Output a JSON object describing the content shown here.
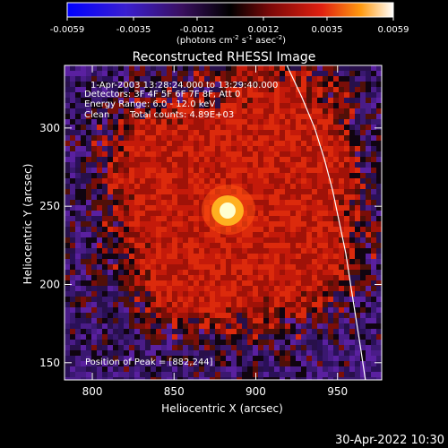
{
  "chart_data": {
    "type": "heatmap",
    "title": "Reconstructed RHESSI Image",
    "xlabel": "Heliocentric X (arcsec)",
    "ylabel": "Heliocentric Y (arcsec)",
    "xlim": [
      783,
      977
    ],
    "ylim": [
      139,
      340
    ],
    "xticks": [
      800,
      850,
      900,
      950
    ],
    "yticks": [
      150,
      200,
      250,
      300
    ],
    "colorbar": {
      "min": -0.0059,
      "max": 0.0059,
      "ticks": [
        "-0.0059",
        "-0.0035",
        "-0.0012",
        "0.0012",
        "0.0035",
        "0.0059"
      ],
      "tick_values": [
        -0.0059,
        -0.0035,
        -0.0012,
        0.0012,
        0.0035,
        0.0059
      ],
      "unit_prefix": "(photons cm",
      "unit_exp1": "-2",
      "unit_mid1": " s",
      "unit_exp2": "-1",
      "unit_mid2": " asec",
      "unit_exp3": "-2",
      "unit_suffix": ")"
    },
    "annotations": {
      "time_range": "1-Apr-2003 13:28:24.000 to 13:29:40.000",
      "detectors": "Detectors: 3F 4F 5F 6F 7F 8F, Att 0",
      "energy": "Energy Range: 6.0 - 12.0 keV",
      "clean": "Clean",
      "total_counts": "Total counts: 4.89E+03",
      "peak_label": "Position of Peak = [882,244]"
    },
    "peak": {
      "x": 882,
      "y": 244
    },
    "limb_curve": [
      [
        919,
        340
      ],
      [
        928,
        320
      ],
      [
        936,
        300
      ],
      [
        942,
        280
      ],
      [
        947,
        260
      ],
      [
        951,
        240
      ],
      [
        955,
        220
      ],
      [
        958,
        200
      ],
      [
        961,
        180
      ],
      [
        964,
        160
      ],
      [
        967,
        139
      ]
    ],
    "footer": "30-Apr-2022 10:30"
  }
}
